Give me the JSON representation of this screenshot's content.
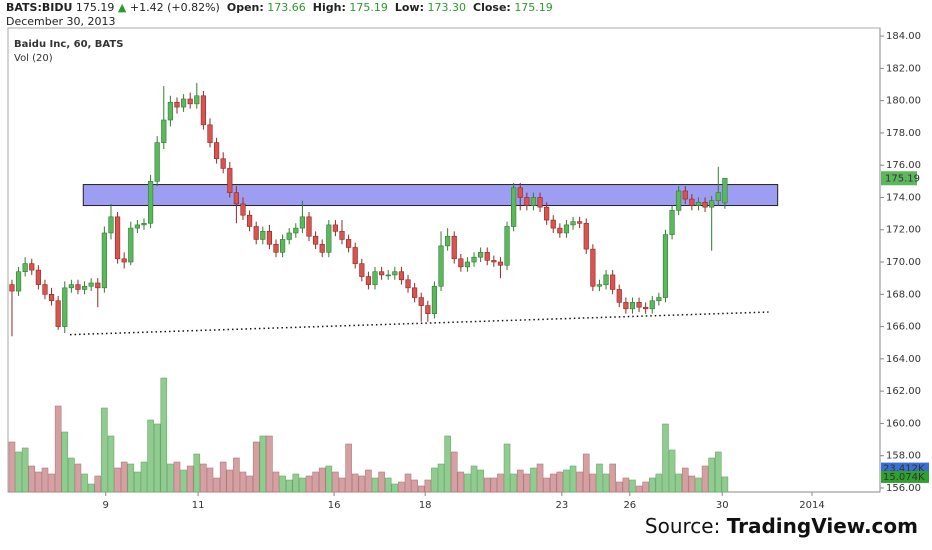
{
  "header": {
    "symbol": "BATS:BIDU",
    "price": "175.19",
    "change": "+1.42 (+0.82%)",
    "open_label": "Open:",
    "open": "173.66",
    "high_label": "High:",
    "high": "175.19",
    "low_label": "Low:",
    "low": "173.30",
    "close_label": "Close:",
    "close": "175.19",
    "date": "December 30, 2013"
  },
  "source": {
    "prefix": "Source:",
    "name": "TradingView.com"
  },
  "chart_data": {
    "type": "candlestick",
    "title": "Baidu Inc, 60, BATS",
    "volume_title": "Vol (20)",
    "up_color": "#5cb85c",
    "down_color": "#d9534f",
    "vol_up_color": "#90cc90",
    "vol_down_color": "#d4a0a2",
    "open": [
      168.6,
      168.2,
      169.4,
      169.9,
      169.5,
      168.6,
      168.0,
      167.6,
      166.0,
      168.4,
      168.6,
      168.3,
      168.5,
      168.7,
      168.4,
      171.8,
      172.8,
      170.2,
      170.0,
      172.1,
      172.3,
      172.4,
      175.0,
      177.4,
      178.8,
      179.9,
      179.6,
      180.1,
      179.8,
      180.3,
      178.5,
      177.4,
      176.4,
      175.8,
      174.3,
      173.6,
      172.9,
      172.2,
      171.4,
      171.9,
      171.1,
      170.6,
      171.4,
      171.8,
      172.1,
      172.8,
      171.6,
      171.1,
      170.6,
      172.3,
      171.9,
      171.4,
      170.9,
      169.9,
      169.1,
      168.6,
      169.4,
      169.2,
      169.2,
      169.4,
      168.9,
      168.4,
      167.8,
      167.3,
      166.8,
      168.5,
      171.0,
      171.6,
      170.2,
      169.7,
      170.0,
      170.3,
      170.6,
      170.1,
      170.0,
      169.8,
      172.2,
      174.6,
      174.0,
      173.5,
      174.0,
      173.4,
      172.6,
      172.1,
      171.8,
      172.3,
      172.5,
      172.4,
      170.8,
      168.5,
      168.6,
      169.2,
      168.3,
      167.5,
      167.1,
      167.5,
      167.2,
      167.1,
      167.6,
      167.8,
      171.7,
      173.2,
      174.4,
      173.9,
      173.5,
      173.7,
      173.4,
      173.8,
      173.66
    ],
    "high": [
      168.9,
      169.7,
      170.3,
      170.2,
      169.8,
      168.9,
      168.4,
      167.9,
      168.8,
      168.9,
      168.9,
      168.8,
      169.0,
      169.0,
      172.2,
      173.6,
      173.1,
      170.6,
      172.5,
      172.6,
      172.7,
      175.4,
      177.8,
      180.9,
      180.3,
      180.2,
      180.4,
      180.5,
      181.1,
      180.6,
      178.9,
      177.7,
      176.8,
      176.2,
      174.7,
      174.0,
      173.2,
      172.5,
      172.2,
      172.3,
      171.4,
      171.7,
      172.1,
      172.4,
      173.8,
      173.1,
      171.9,
      171.4,
      172.6,
      172.6,
      172.6,
      171.7,
      171.2,
      170.2,
      169.4,
      169.7,
      169.7,
      169.5,
      169.7,
      169.7,
      169.2,
      168.7,
      168.1,
      167.6,
      168.8,
      171.9,
      172.1,
      171.9,
      170.5,
      170.3,
      170.6,
      170.9,
      170.9,
      170.4,
      170.3,
      172.5,
      174.9,
      174.9,
      174.3,
      174.3,
      174.3,
      173.7,
      172.9,
      172.4,
      172.6,
      172.8,
      172.8,
      172.7,
      171.1,
      168.9,
      169.5,
      169.5,
      168.6,
      167.8,
      167.8,
      167.8,
      167.5,
      167.9,
      168.1,
      172.0,
      173.5,
      174.7,
      174.7,
      174.2,
      174.0,
      174.0,
      174.1,
      175.9,
      175.19
    ],
    "low": [
      165.4,
      167.9,
      169.1,
      169.2,
      168.3,
      167.7,
      167.3,
      165.8,
      165.6,
      168.1,
      168.0,
      168.0,
      168.2,
      167.2,
      168.1,
      171.4,
      169.9,
      169.6,
      169.8,
      171.8,
      172.0,
      172.1,
      174.7,
      177.0,
      178.4,
      179.2,
      179.3,
      179.5,
      179.5,
      178.2,
      177.1,
      176.1,
      175.5,
      174.0,
      172.4,
      172.6,
      171.9,
      171.1,
      171.1,
      170.8,
      170.3,
      170.3,
      171.1,
      171.5,
      171.8,
      171.3,
      170.8,
      170.3,
      170.3,
      171.6,
      171.1,
      170.6,
      169.6,
      168.8,
      168.3,
      168.3,
      168.9,
      168.9,
      168.9,
      168.6,
      168.1,
      167.5,
      166.3,
      166.3,
      166.5,
      168.2,
      170.7,
      169.9,
      169.4,
      169.4,
      169.7,
      170.0,
      169.8,
      169.7,
      169.0,
      169.5,
      171.9,
      173.2,
      173.2,
      173.2,
      173.1,
      172.3,
      171.8,
      171.5,
      171.5,
      172.0,
      172.1,
      170.5,
      168.2,
      168.2,
      168.3,
      168.0,
      167.2,
      166.8,
      166.8,
      166.9,
      166.8,
      166.8,
      167.3,
      167.5,
      171.4,
      172.9,
      173.6,
      173.2,
      173.2,
      173.1,
      170.7,
      173.5,
      173.3
    ],
    "close": [
      168.2,
      169.4,
      169.9,
      169.5,
      168.6,
      168.0,
      167.6,
      166.0,
      168.4,
      168.6,
      168.3,
      168.5,
      168.7,
      168.4,
      171.8,
      172.8,
      170.2,
      170.0,
      172.1,
      172.3,
      172.4,
      175.0,
      177.4,
      178.8,
      179.9,
      179.6,
      180.1,
      179.8,
      180.3,
      178.5,
      177.4,
      176.4,
      175.8,
      174.3,
      173.6,
      172.9,
      172.2,
      171.4,
      171.9,
      171.1,
      170.6,
      171.4,
      171.8,
      172.1,
      172.8,
      171.6,
      171.1,
      170.6,
      172.3,
      171.9,
      171.4,
      170.9,
      169.9,
      169.1,
      168.6,
      169.4,
      169.2,
      169.2,
      169.4,
      168.9,
      168.4,
      167.8,
      167.3,
      166.8,
      168.5,
      171.0,
      171.6,
      170.2,
      169.7,
      170.0,
      170.3,
      170.6,
      170.1,
      170.0,
      169.8,
      172.2,
      174.6,
      174.0,
      173.5,
      174.0,
      173.4,
      172.6,
      172.1,
      171.8,
      172.3,
      172.5,
      172.4,
      170.8,
      168.5,
      168.6,
      169.2,
      168.3,
      167.5,
      167.1,
      167.5,
      167.2,
      167.1,
      167.6,
      167.8,
      171.7,
      173.2,
      174.4,
      173.9,
      173.5,
      173.7,
      173.4,
      173.8,
      174.3,
      175.19
    ],
    "volume": [
      50,
      40,
      44,
      26,
      20,
      24,
      18,
      86,
      60,
      34,
      28,
      18,
      8,
      16,
      84,
      56,
      24,
      30,
      28,
      20,
      30,
      72,
      68,
      114,
      28,
      30,
      22,
      26,
      38,
      28,
      24,
      14,
      30,
      22,
      34,
      20,
      16,
      50,
      56,
      56,
      20,
      16,
      12,
      18,
      14,
      16,
      20,
      24,
      26,
      20,
      14,
      48,
      18,
      16,
      22,
      14,
      20,
      14,
      8,
      10,
      18,
      12,
      6,
      12,
      24,
      28,
      56,
      40,
      20,
      18,
      26,
      22,
      14,
      14,
      18,
      48,
      18,
      22,
      18,
      24,
      28,
      14,
      18,
      20,
      22,
      26,
      20,
      38,
      18,
      28,
      18,
      28,
      10,
      14,
      12,
      6,
      10,
      14,
      18,
      68,
      42,
      18,
      24,
      16,
      14,
      26,
      34,
      40,
      15.074
    ],
    "volume_badges": [
      {
        "value": 23.412,
        "label": "23.412K",
        "color": "#3b6fd6"
      },
      {
        "value": 15.074,
        "label": "15.074K",
        "color": "#2fa12f"
      }
    ],
    "vlim": [
      0,
      120
    ],
    "xlim": [
      -0.6,
      131.5
    ],
    "xticks": [
      {
        "value": 14.2,
        "label": "9"
      },
      {
        "value": 28.2,
        "label": "11"
      },
      {
        "value": 48.8,
        "label": "16"
      },
      {
        "value": 62.6,
        "label": "18"
      },
      {
        "value": 83.3,
        "label": "23"
      },
      {
        "value": 93.6,
        "label": "26"
      },
      {
        "value": 107.6,
        "label": "30"
      },
      {
        "value": 121.2,
        "label": "2014"
      }
    ],
    "ylim": [
      155.75,
      184.5
    ],
    "yticks": [
      {
        "value": 156,
        "label": "156.00"
      },
      {
        "value": 158,
        "label": "158.00"
      },
      {
        "value": 160,
        "label": "160.00"
      },
      {
        "value": 162,
        "label": "162.00"
      },
      {
        "value": 164,
        "label": "164.00"
      },
      {
        "value": 166,
        "label": "166.00"
      },
      {
        "value": 168,
        "label": "168.00"
      },
      {
        "value": 170,
        "label": "170.00"
      },
      {
        "value": 172,
        "label": "172.00"
      },
      {
        "value": 174,
        "label": "174.00"
      },
      {
        "value": 176,
        "label": "176.00"
      },
      {
        "value": 178,
        "label": "178.00"
      },
      {
        "value": 180,
        "label": "180.00"
      },
      {
        "value": 182,
        "label": "182.00"
      },
      {
        "value": 184,
        "label": "184.00"
      }
    ],
    "zone": {
      "x": [
        10.8,
        116
      ],
      "y": [
        173.5,
        174.8
      ],
      "color": "#8c8cf0"
    },
    "trendline": {
      "x": [
        8.8,
        114.6
      ],
      "y": [
        165.5,
        166.9
      ]
    }
  }
}
